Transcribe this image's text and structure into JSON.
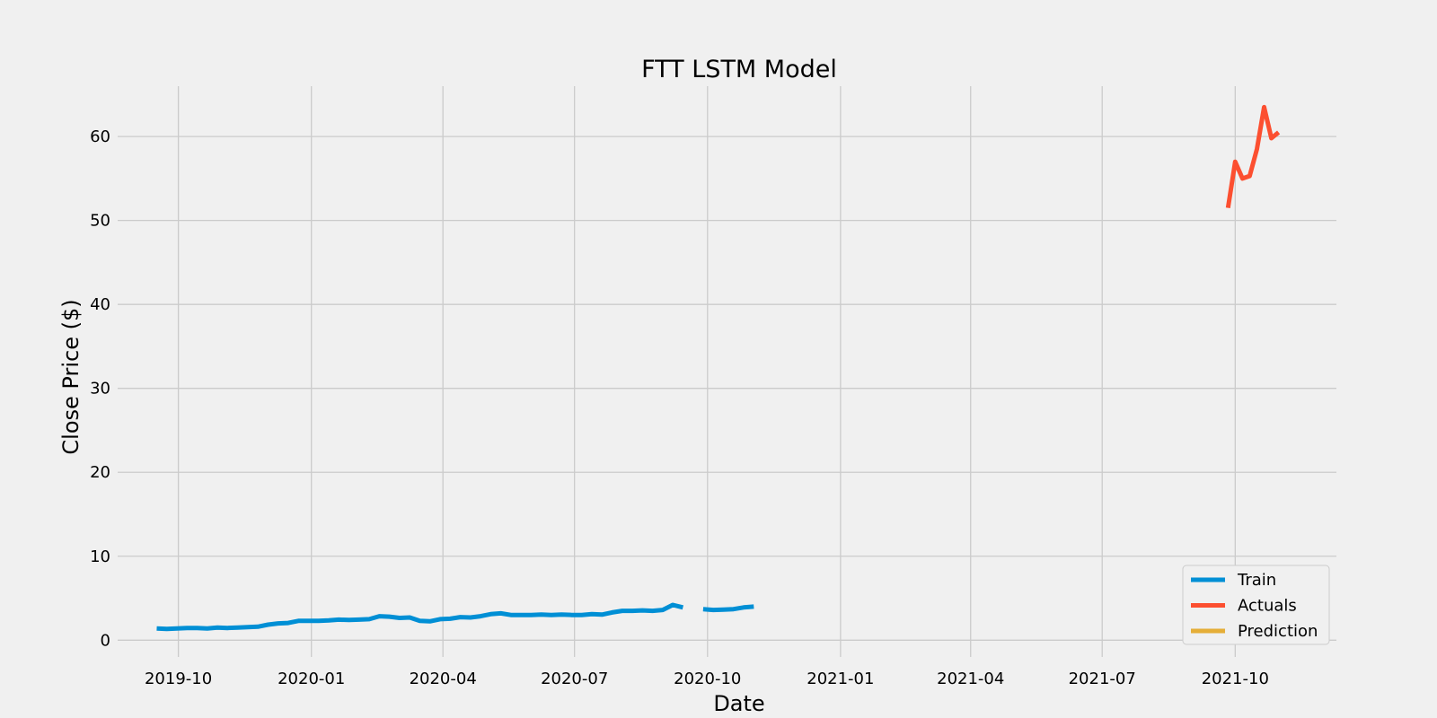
{
  "chart_data": {
    "type": "line",
    "title": "FTT LSTM Model",
    "xlabel": "Date",
    "ylabel": "Close Price ($)",
    "xlim": [
      "2019-08-20",
      "2021-12-10"
    ],
    "ylim": [
      -2,
      66
    ],
    "x_ticks": [
      "2019-10",
      "2020-01",
      "2020-04",
      "2020-07",
      "2020-10",
      "2021-01",
      "2021-04",
      "2021-07",
      "2021-10"
    ],
    "y_ticks": [
      0,
      10,
      20,
      30,
      40,
      50,
      60
    ],
    "grid": true,
    "legend_position": "bottom-right",
    "series": [
      {
        "name": "Train",
        "color": "#008fd5",
        "segments": [
          [
            [
              "2019-09-16",
              1.4
            ],
            [
              "2019-09-23",
              1.35
            ],
            [
              "2019-09-30",
              1.4
            ],
            [
              "2019-10-07",
              1.45
            ],
            [
              "2019-10-14",
              1.45
            ],
            [
              "2019-10-21",
              1.4
            ],
            [
              "2019-10-28",
              1.5
            ],
            [
              "2019-11-04",
              1.45
            ],
            [
              "2019-11-11",
              1.5
            ],
            [
              "2019-11-18",
              1.55
            ],
            [
              "2019-11-25",
              1.6
            ],
            [
              "2019-12-02",
              1.85
            ],
            [
              "2019-12-09",
              2.0
            ],
            [
              "2019-12-16",
              2.05
            ],
            [
              "2019-12-23",
              2.3
            ],
            [
              "2019-12-30",
              2.3
            ],
            [
              "2020-01-06",
              2.3
            ],
            [
              "2020-01-13",
              2.35
            ],
            [
              "2020-01-20",
              2.45
            ],
            [
              "2020-01-27",
              2.4
            ],
            [
              "2020-02-03",
              2.45
            ],
            [
              "2020-02-10",
              2.5
            ],
            [
              "2020-02-17",
              2.85
            ],
            [
              "2020-02-24",
              2.8
            ],
            [
              "2020-03-02",
              2.65
            ],
            [
              "2020-03-09",
              2.7
            ],
            [
              "2020-03-16",
              2.3
            ],
            [
              "2020-03-23",
              2.25
            ],
            [
              "2020-03-30",
              2.5
            ],
            [
              "2020-04-06",
              2.55
            ],
            [
              "2020-04-13",
              2.75
            ],
            [
              "2020-04-20",
              2.7
            ],
            [
              "2020-04-27",
              2.85
            ],
            [
              "2020-05-04",
              3.1
            ],
            [
              "2020-05-11",
              3.2
            ],
            [
              "2020-05-18",
              3.0
            ],
            [
              "2020-05-25",
              3.0
            ],
            [
              "2020-06-01",
              3.0
            ],
            [
              "2020-06-08",
              3.05
            ],
            [
              "2020-06-15",
              3.0
            ],
            [
              "2020-06-22",
              3.05
            ],
            [
              "2020-06-29",
              3.0
            ],
            [
              "2020-07-06",
              3.0
            ],
            [
              "2020-07-13",
              3.1
            ],
            [
              "2020-07-20",
              3.05
            ],
            [
              "2020-07-27",
              3.3
            ],
            [
              "2020-08-03",
              3.5
            ],
            [
              "2020-08-10",
              3.5
            ],
            [
              "2020-08-17",
              3.55
            ],
            [
              "2020-08-24",
              3.5
            ],
            [
              "2020-08-31",
              3.6
            ],
            [
              "2020-09-07",
              4.2
            ],
            [
              "2020-09-14",
              3.9
            ]
          ],
          [
            [
              "2020-09-28",
              3.7
            ],
            [
              "2020-10-05",
              3.6
            ],
            [
              "2020-10-12",
              3.65
            ],
            [
              "2020-10-19",
              3.7
            ],
            [
              "2020-10-26",
              3.9
            ],
            [
              "2020-11-02",
              4.0
            ]
          ]
        ]
      },
      {
        "name": "Actuals",
        "color": "#fc4f30",
        "segments": [
          [
            [
              "2021-09-26",
              51.5
            ],
            [
              "2021-10-01",
              57.0
            ],
            [
              "2021-10-06",
              55.0
            ],
            [
              "2021-10-11",
              55.3
            ],
            [
              "2021-10-16",
              58.5
            ],
            [
              "2021-10-21",
              63.5
            ],
            [
              "2021-10-26",
              59.8
            ],
            [
              "2021-10-31",
              60.5
            ]
          ]
        ]
      },
      {
        "name": "Prediction",
        "color": "#e5ae38",
        "segments": []
      }
    ]
  }
}
